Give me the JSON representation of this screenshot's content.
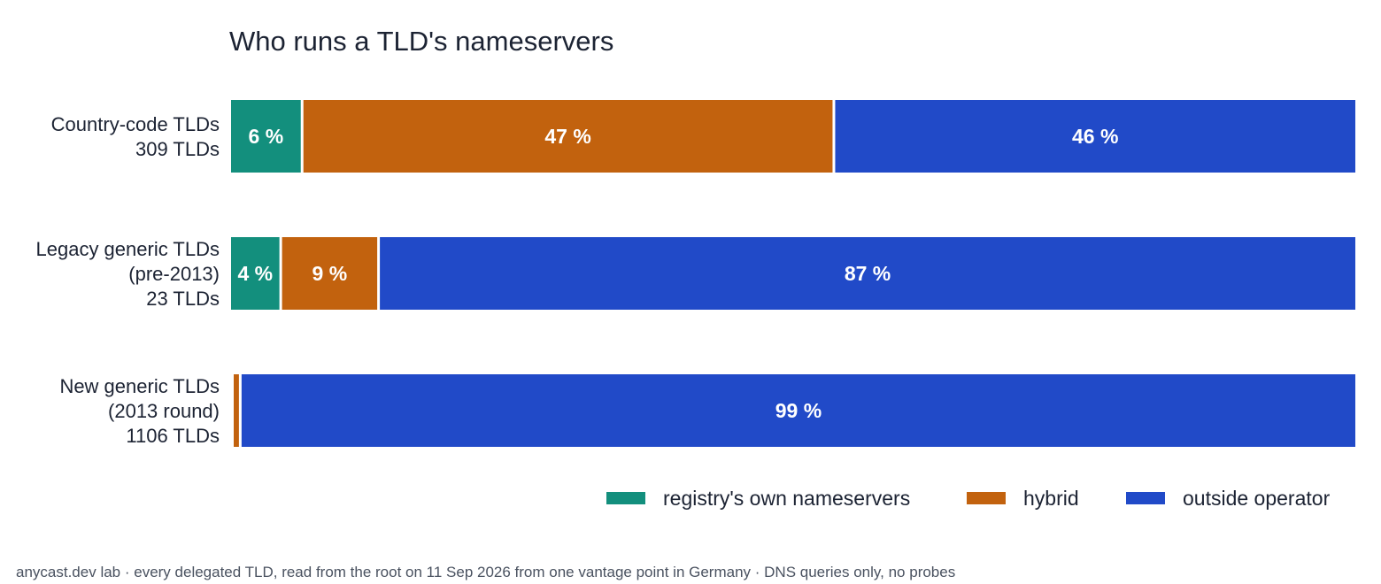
{
  "chart_data": {
    "type": "bar",
    "orientation": "horizontal",
    "stacked": true,
    "normalized_percent": true,
    "title": "Who runs a TLD's nameservers",
    "categories": [
      {
        "name": "Country-code TLDs",
        "count_label": "309 TLDs"
      },
      {
        "name": "Legacy generic TLDs",
        "subname": "(pre-2013)",
        "count_label": "23 TLDs"
      },
      {
        "name": "New generic TLDs",
        "subname": "(2013 round)",
        "count_label": "1106 TLDs"
      }
    ],
    "series": [
      {
        "name": "registry's own nameservers",
        "color": "#138f7d",
        "values": [
          6.2,
          4.3,
          0.0
        ],
        "labels": [
          "6 %",
          "4 %",
          ""
        ]
      },
      {
        "name": "hybrid",
        "color": "#c2620e",
        "values": [
          47.3,
          8.7,
          0.7
        ],
        "labels": [
          "47 %",
          "9 %",
          ""
        ]
      },
      {
        "name": "outside operator",
        "color": "#214ac8",
        "values": [
          46.5,
          87.0,
          99.3
        ],
        "labels": [
          "46 %",
          "87 %",
          "99 %"
        ]
      }
    ],
    "xlim": [
      0,
      100
    ],
    "grid": false,
    "legend_position": "bottom-right"
  },
  "footnote": "anycast.dev lab · every delegated TLD, read from the root on 11 Sep 2026 from one vantage point in Germany · DNS queries only, no probes"
}
